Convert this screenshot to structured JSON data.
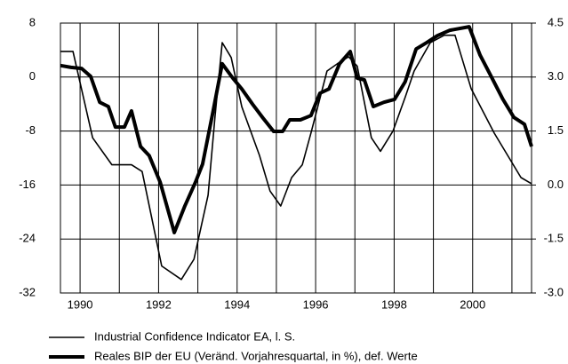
{
  "chart_data": {
    "type": "line",
    "xlim": [
      1989.5,
      2001.5
    ],
    "xticks": [
      1990,
      1992,
      1994,
      1996,
      1998,
      2000
    ],
    "xminor_ticks": [
      1991,
      1993,
      1995,
      1997,
      1999,
      2001
    ],
    "ylim": [
      -32,
      8
    ],
    "yticks": [
      8,
      0,
      -8,
      -16,
      -24,
      -32
    ],
    "y2lim": [
      -3.0,
      4.5
    ],
    "y2ticks": [
      4.5,
      {
        "value": 3.0,
        "label": "3.0"
      },
      1.5,
      {
        "value": 0.0,
        "label": "0.0"
      },
      -1.5,
      {
        "value": -3.0,
        "label": "-3.0"
      }
    ],
    "grid": true,
    "series": [
      {
        "name": "Industrial Confidence Indicator EA, l. S.",
        "color": "#000000",
        "line_width": 1.6,
        "x": [
          1989.5,
          1989.82,
          1990.32,
          1990.81,
          1991.31,
          1991.58,
          1992.08,
          1992.58,
          1992.9,
          1993.26,
          1993.44,
          1993.62,
          1993.85,
          1994.12,
          1994.57,
          1994.84,
          1995.11,
          1995.39,
          1995.66,
          1995.88,
          1996.29,
          1996.56,
          1996.84,
          1997.06,
          1997.42,
          1997.65,
          1997.97,
          1998.28,
          1998.51,
          1998.92,
          1999.28,
          1999.55,
          1999.96,
          2000.55,
          2001.23,
          2001.5
        ],
        "values": [
          3.8,
          3.8,
          -9,
          -13,
          -13,
          -14,
          -28,
          -30,
          -27,
          -17.5,
          -5.7,
          5.1,
          2.9,
          -4.4,
          -11.6,
          -16.9,
          -19.1,
          -14.9,
          -13,
          -8.3,
          0.9,
          2,
          3,
          1.6,
          -9,
          -11,
          -8,
          -3,
          0.9,
          5.1,
          6.2,
          6.2,
          -1.7,
          -8.3,
          -14.9,
          -15.8
        ]
      },
      {
        "name": "Reales BIP der EU (Veränd. Vorjahresquartal, in %), def. Werte",
        "color": "#000000",
        "line_width": 4,
        "axis": "y2",
        "x": [
          1989.5,
          1989.77,
          1990.04,
          1990.27,
          1990.5,
          1990.72,
          1990.9,
          1991.13,
          1991.31,
          1991.54,
          1991.76,
          1992.04,
          1992.4,
          1992.67,
          1992.94,
          1993.12,
          1993.39,
          1993.62,
          1993.89,
          1994.12,
          1994.39,
          1994.66,
          1994.93,
          1995.16,
          1995.34,
          1995.61,
          1995.88,
          1996.11,
          1996.34,
          1996.61,
          1996.88,
          1997.06,
          1997.24,
          1997.47,
          1997.74,
          1998.01,
          1998.28,
          1998.56,
          1998.83,
          1999.1,
          1999.42,
          1999.91,
          2000.19,
          2000.46,
          2000.77,
          2001.05,
          2001.32,
          2001.5
        ],
        "values": [
          3.32,
          3.27,
          3.24,
          3.02,
          2.3,
          2.18,
          1.61,
          1.61,
          2.06,
          1.07,
          0.82,
          0.08,
          -1.32,
          -0.58,
          0.08,
          0.58,
          2.06,
          3.37,
          2.97,
          2.67,
          2.25,
          1.86,
          1.49,
          1.49,
          1.81,
          1.81,
          1.93,
          2.55,
          2.67,
          3.37,
          3.71,
          2.97,
          2.92,
          2.18,
          2.3,
          2.38,
          2.87,
          3.78,
          3.96,
          4.15,
          4.3,
          4.4,
          3.61,
          3.04,
          2.38,
          1.88,
          1.69,
          1.07
        ]
      }
    ]
  }
}
